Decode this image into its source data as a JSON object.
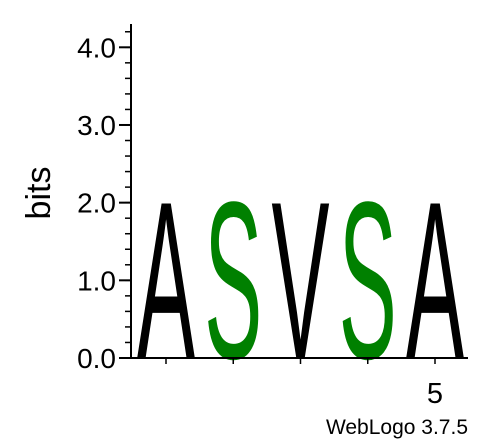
{
  "chart_data": {
    "type": "sequence-logo",
    "ylabel": "bits",
    "ylim": [
      0,
      4.3
    ],
    "y_ticks": [
      {
        "value": 0.0,
        "label": "0.0"
      },
      {
        "value": 1.0,
        "label": "1.0"
      },
      {
        "value": 2.0,
        "label": "2.0"
      },
      {
        "value": 3.0,
        "label": "3.0"
      },
      {
        "value": 4.0,
        "label": "4.0"
      }
    ],
    "y_minor_step": 0.2,
    "positions": [
      1,
      2,
      3,
      4,
      5
    ],
    "x_tick_labels": [
      {
        "position": 5,
        "label": "5"
      }
    ],
    "stacks": [
      {
        "position": 1,
        "letters": [
          {
            "letter": "A",
            "bits": 2.07,
            "color": "#000000"
          }
        ]
      },
      {
        "position": 2,
        "letters": [
          {
            "letter": "S",
            "bits": 2.07,
            "color": "#008000"
          }
        ]
      },
      {
        "position": 3,
        "letters": [
          {
            "letter": "V",
            "bits": 2.07,
            "color": "#000000"
          }
        ]
      },
      {
        "position": 4,
        "letters": [
          {
            "letter": "S",
            "bits": 2.07,
            "color": "#008000"
          }
        ]
      },
      {
        "position": 5,
        "letters": [
          {
            "letter": "A",
            "bits": 2.07,
            "color": "#000000"
          }
        ]
      }
    ],
    "footer": "WebLogo 3.7.5",
    "grid": false,
    "legend": "none"
  }
}
